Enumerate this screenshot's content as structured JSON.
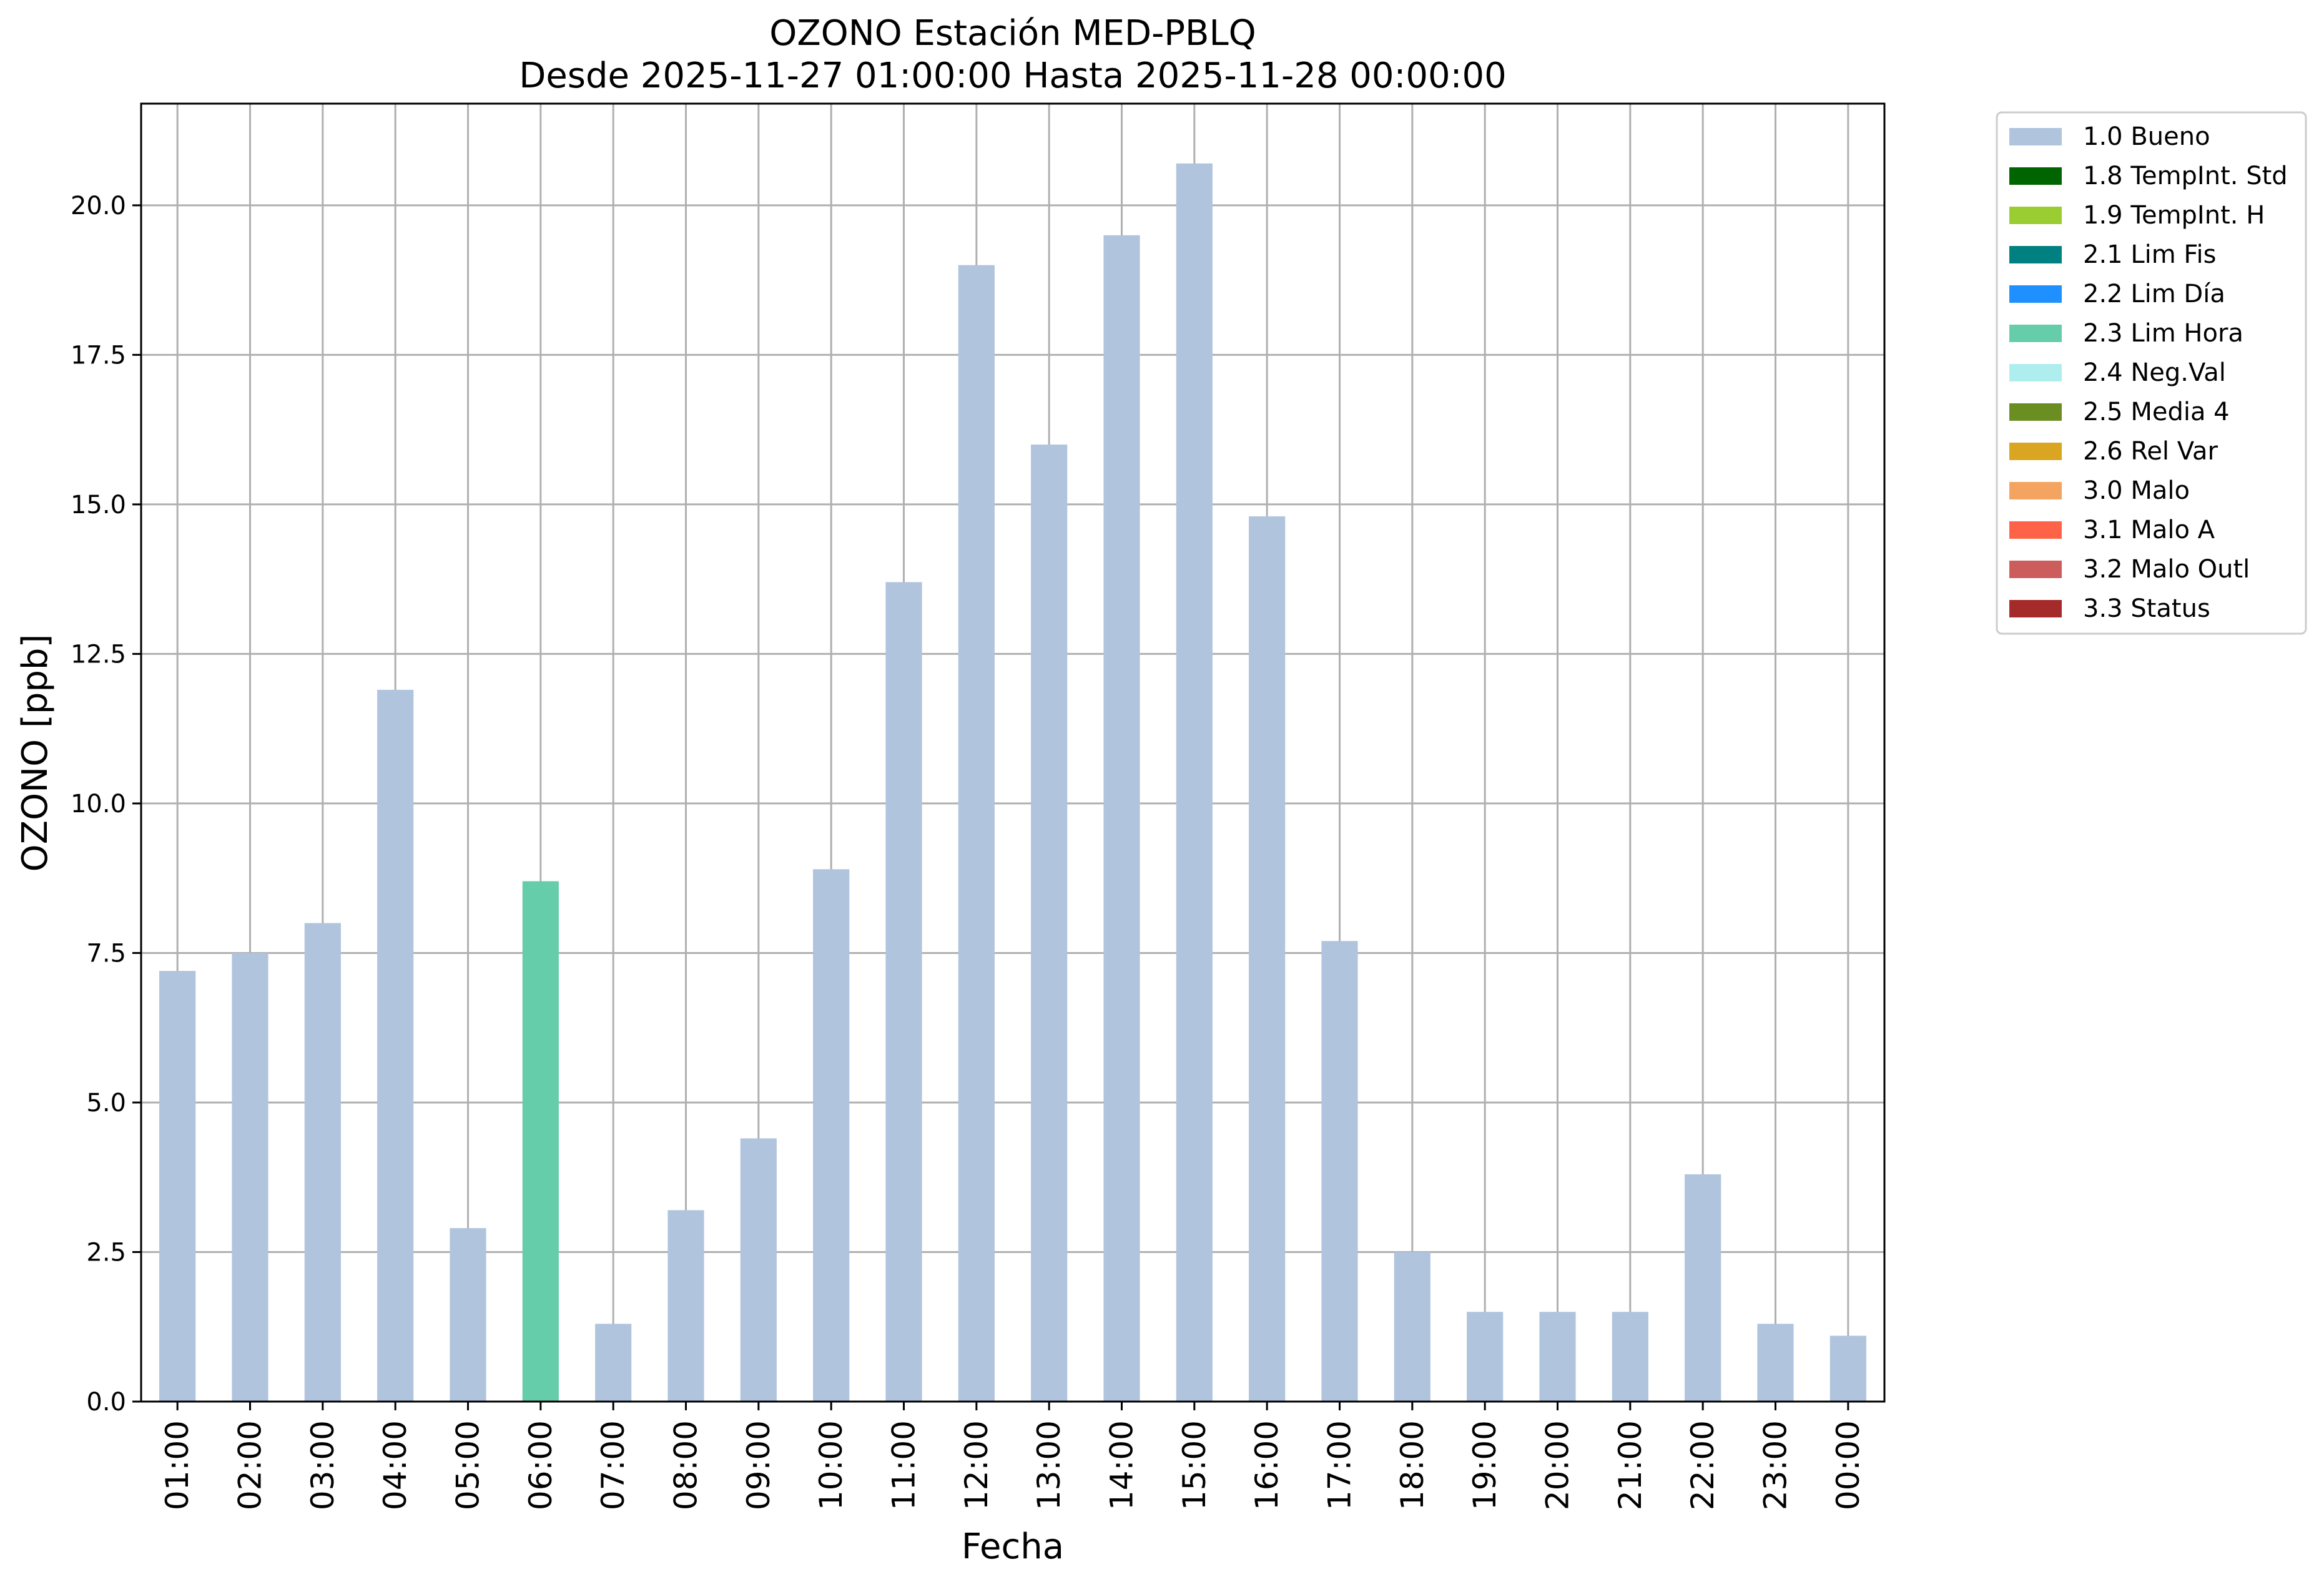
{
  "chart_data": {
    "type": "bar",
    "title": "OZONO Estación MED-PBLQ",
    "subtitle": "Desde 2025-11-27 01:00:00 Hasta 2025-11-28 00:00:00",
    "xlabel": "Fecha",
    "ylabel": "OZONO [ppb]",
    "ylim": [
      0,
      21.7
    ],
    "yticks": [
      "0.0",
      "2.5",
      "5.0",
      "7.5",
      "10.0",
      "12.5",
      "15.0",
      "17.5",
      "20.0"
    ],
    "grid": true,
    "legend_position": "outside top-right",
    "categories": [
      "01:00",
      "02:00",
      "03:00",
      "04:00",
      "05:00",
      "06:00",
      "07:00",
      "08:00",
      "09:00",
      "10:00",
      "11:00",
      "12:00",
      "13:00",
      "14:00",
      "15:00",
      "16:00",
      "17:00",
      "18:00",
      "19:00",
      "20:00",
      "21:00",
      "22:00",
      "23:00",
      "00:00"
    ],
    "values": [
      7.2,
      7.5,
      8.0,
      11.9,
      2.9,
      8.7,
      1.3,
      3.2,
      4.4,
      8.9,
      13.7,
      19.0,
      16.0,
      19.5,
      20.7,
      14.8,
      7.7,
      2.5,
      1.5,
      1.5,
      1.5,
      3.8,
      1.3,
      1.1
    ],
    "flags": [
      "1.0 Bueno",
      "1.0 Bueno",
      "1.0 Bueno",
      "1.0 Bueno",
      "1.0 Bueno",
      "2.3 Lim Hora",
      "1.0 Bueno",
      "1.0 Bueno",
      "1.0 Bueno",
      "1.0 Bueno",
      "1.0 Bueno",
      "1.0 Bueno",
      "1.0 Bueno",
      "1.0 Bueno",
      "1.0 Bueno",
      "1.0 Bueno",
      "1.0 Bueno",
      "1.0 Bueno",
      "1.0 Bueno",
      "1.0 Bueno",
      "1.0 Bueno",
      "1.0 Bueno",
      "1.0 Bueno",
      "1.0 Bueno"
    ],
    "legend": [
      {
        "name": "1.0 Bueno",
        "color": "#b0c4de"
      },
      {
        "name": "1.8 TempInt. Std",
        "color": "#006400"
      },
      {
        "name": "1.9 TempInt. H",
        "color": "#9acd32"
      },
      {
        "name": "2.1 Lim Fis",
        "color": "#008080"
      },
      {
        "name": "2.2 Lim Día",
        "color": "#1e90ff"
      },
      {
        "name": "2.3 Lim Hora",
        "color": "#66cdaa"
      },
      {
        "name": "2.4 Neg.Val",
        "color": "#afeeee"
      },
      {
        "name": "2.5 Media 4",
        "color": "#6b8e23"
      },
      {
        "name": "2.6 Rel Var",
        "color": "#daa520"
      },
      {
        "name": "3.0 Malo",
        "color": "#f4a460"
      },
      {
        "name": "3.1 Malo A",
        "color": "#ff6347"
      },
      {
        "name": "3.2 Malo Outl",
        "color": "#cd5c5c"
      },
      {
        "name": "3.3 Status",
        "color": "#a52a2a"
      }
    ]
  }
}
